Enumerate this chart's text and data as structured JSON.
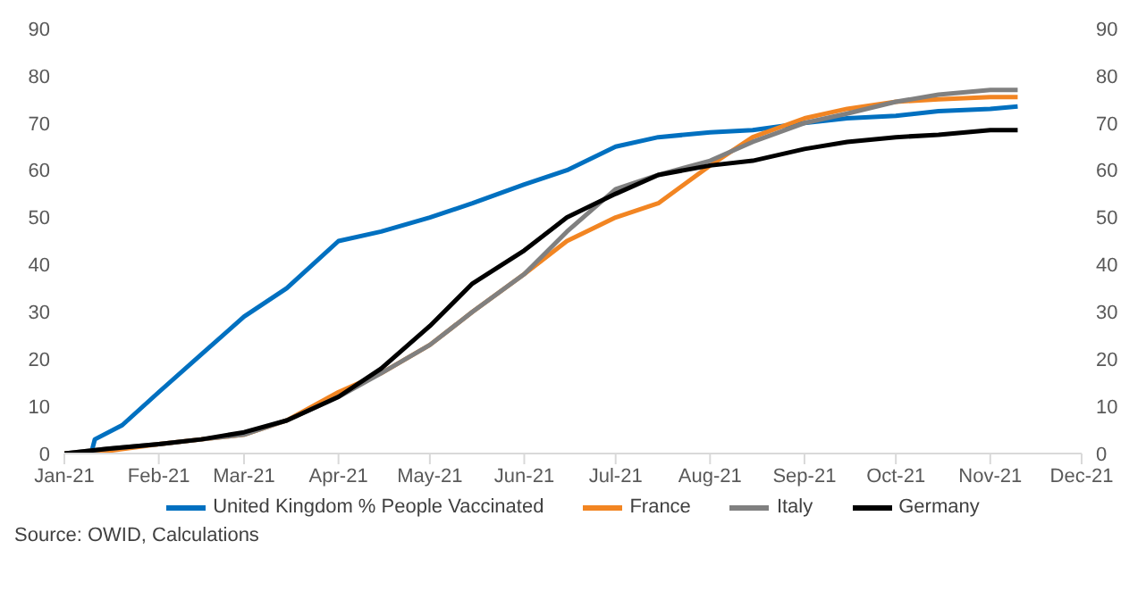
{
  "chart_data": {
    "type": "line",
    "x": [
      "2021-01-01",
      "2021-01-15",
      "2021-02-01",
      "2021-02-15",
      "2021-03-01",
      "2021-03-15",
      "2021-04-01",
      "2021-04-15",
      "2021-05-01",
      "2021-05-15",
      "2021-06-01",
      "2021-06-15",
      "2021-07-01",
      "2021-07-15",
      "2021-08-01",
      "2021-08-15",
      "2021-09-01",
      "2021-09-15",
      "2021-10-01",
      "2021-10-15",
      "2021-11-01",
      "2021-11-10"
    ],
    "series": [
      {
        "name": "United Kingdom % People Vaccinated",
        "color": "#0070c0",
        "x": [
          "2021-01-10",
          "2021-01-11",
          "2021-01-20",
          "2021-02-01",
          "2021-02-15",
          "2021-03-01",
          "2021-03-15",
          "2021-04-01",
          "2021-04-15",
          "2021-05-01",
          "2021-05-15",
          "2021-06-01",
          "2021-06-15",
          "2021-07-01",
          "2021-07-15",
          "2021-08-01",
          "2021-08-15",
          "2021-09-01",
          "2021-09-15",
          "2021-10-01",
          "2021-10-15",
          "2021-11-01",
          "2021-11-10"
        ],
        "values": [
          0.5,
          3,
          6,
          13,
          21,
          29,
          35,
          45,
          47,
          50,
          53,
          57,
          60,
          65,
          67,
          68,
          68.5,
          70,
          71,
          71.5,
          72.5,
          73,
          73.5
        ]
      },
      {
        "name": "France",
        "color": "#f28522",
        "values": [
          0,
          0.5,
          2,
          3,
          4,
          7,
          13,
          17,
          23,
          30,
          38,
          45,
          50,
          53,
          61,
          67,
          71,
          73,
          74.5,
          75,
          75.5,
          75.5
        ]
      },
      {
        "name": "Italy",
        "color": "#808080",
        "values": [
          0,
          1,
          2,
          3,
          4,
          7,
          12,
          17,
          23,
          30,
          38,
          47,
          56,
          59,
          62,
          66,
          70,
          72,
          74.5,
          76,
          77,
          77
        ]
      },
      {
        "name": "Germany",
        "color": "#000000",
        "values": [
          0,
          1,
          2,
          3,
          4.5,
          7,
          12,
          18,
          27,
          36,
          43,
          50,
          55,
          59,
          61,
          62,
          64.5,
          66,
          67,
          67.5,
          68.5,
          68.5
        ]
      }
    ],
    "xlim": [
      "2021-01-01",
      "2021-12-01"
    ],
    "xticks": [
      {
        "value": "2021-01-01",
        "label": "Jan-21"
      },
      {
        "value": "2021-02-01",
        "label": "Feb-21"
      },
      {
        "value": "2021-03-01",
        "label": "Mar-21"
      },
      {
        "value": "2021-04-01",
        "label": "Apr-21"
      },
      {
        "value": "2021-05-01",
        "label": "May-21"
      },
      {
        "value": "2021-06-01",
        "label": "Jun-21"
      },
      {
        "value": "2021-07-01",
        "label": "Jul-21"
      },
      {
        "value": "2021-08-01",
        "label": "Aug-21"
      },
      {
        "value": "2021-09-01",
        "label": "Sep-21"
      },
      {
        "value": "2021-10-01",
        "label": "Oct-21"
      },
      {
        "value": "2021-11-01",
        "label": "Nov-21"
      },
      {
        "value": "2021-12-01",
        "label": "Dec-21"
      }
    ],
    "ylim": [
      0,
      90
    ],
    "yticks": [
      0,
      10,
      20,
      30,
      40,
      50,
      60,
      70,
      80,
      90
    ],
    "y2lim": [
      0,
      90
    ],
    "y2ticks": [
      0,
      10,
      20,
      30,
      40,
      50,
      60,
      70,
      80,
      90
    ],
    "legend": "bottom",
    "marker": "none",
    "line_style": "solid",
    "annotations": [
      "Source: OWID, Calculations"
    ]
  }
}
